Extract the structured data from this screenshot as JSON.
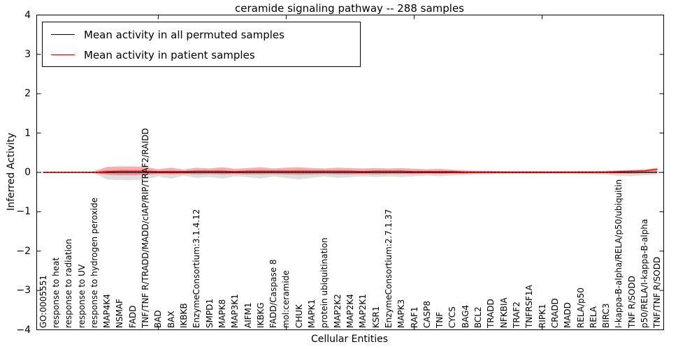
{
  "chart_data": {
    "type": "line",
    "title": "ceramide signaling pathway -- 288 samples",
    "xlabel": "Cellular Entities",
    "ylabel": "Inferred Activity",
    "ylim": [
      -4,
      4
    ],
    "yticks": [
      -4,
      -3,
      -2,
      -1,
      0,
      1,
      2,
      3,
      4
    ],
    "xticks_major": [
      10,
      20,
      30,
      40
    ],
    "grid": false,
    "legend_position": "upper left",
    "zero_line": {
      "style": "dotted",
      "color": "#000000"
    },
    "categories": [
      "GO:0005551",
      "response to heat",
      "response to radiation",
      "response to UV",
      "response to hydrogen peroxide",
      "MAP4K4",
      "NSMAF",
      "FADD",
      "TNF/TNF R/TRADD/MADD/cIAP/RIP/TRAF2/RAIDD",
      "BAD",
      "BAX",
      "IKBKB",
      "EnzymeConsortium:3.1.4.12",
      "SMPD1",
      "MAPK8",
      "MAP3K1",
      "AIFM1",
      "IKBKG",
      "FADD/Caspase 8",
      "mol:ceramide",
      "CHUK",
      "MAPK1",
      "protein ubiquitination",
      "MAP2K2",
      "MAP2K4",
      "MAP2K1",
      "KSR1",
      "EnzymeConsortium:2.7.1.37",
      "MAPK3",
      "RAF1",
      "CASP8",
      "TNF",
      "CYCS",
      "BAG4",
      "BCL2",
      "TRADD",
      "NFKBIA",
      "TRAF2",
      "TNFRSF1A",
      "RIPK1",
      "CRADD",
      "MADD",
      "RELA/p50",
      "RELA",
      "BIRC3",
      "I-kappa-B-alpha/RELA/p50/ubiquitin",
      "TNF R/SODD",
      "p50/RELA/I-kappa-B-alpha",
      "TNF/TNF R/SODD"
    ],
    "series": [
      {
        "name": "Mean activity in all permuted samples",
        "color": "#000000",
        "style": "solid",
        "values": [
          0,
          0,
          0,
          0,
          0,
          0,
          0,
          0,
          0,
          0,
          0,
          0,
          0,
          0,
          0,
          0,
          0,
          0,
          0,
          0,
          0,
          0,
          0,
          0,
          0,
          0,
          0,
          0,
          0,
          0,
          0,
          0,
          0,
          0,
          0,
          0,
          0,
          0,
          0,
          0,
          0,
          0,
          0,
          0,
          0,
          0,
          0,
          0,
          0
        ]
      },
      {
        "name": "Mean activity in patient samples",
        "color": "#ff0000",
        "style": "solid",
        "values": [
          0,
          0,
          0,
          0,
          0,
          0.02,
          0.03,
          0.03,
          0.03,
          0.02,
          0.02,
          0.02,
          0.03,
          0.03,
          0.03,
          0.02,
          0.03,
          0.03,
          0.03,
          0.03,
          0.03,
          0.03,
          0.03,
          0.03,
          0.03,
          0.02,
          0.03,
          0.03,
          0.03,
          0.02,
          0.02,
          0.02,
          0.02,
          0.01,
          0.01,
          0.01,
          0.01,
          0.01,
          0.01,
          0.01,
          0.01,
          0.01,
          0.01,
          0.01,
          0.01,
          0.02,
          0.03,
          0.04,
          0.08
        ]
      }
    ],
    "bands": [
      {
        "name": "permuted samples +/- std",
        "color": "#000000",
        "opacity": 0.13,
        "upper": [
          0.01,
          0.01,
          0.01,
          0.01,
          0.02,
          0.06,
          0.07,
          0.07,
          0.06,
          0.04,
          0.05,
          0.04,
          0.05,
          0.05,
          0.05,
          0.04,
          0.05,
          0.06,
          0.05,
          0.05,
          0.06,
          0.05,
          0.05,
          0.05,
          0.05,
          0.04,
          0.05,
          0.04,
          0.05,
          0.04,
          0.04,
          0.04,
          0.04,
          0.03,
          0.03,
          0.03,
          0.02,
          0.02,
          0.02,
          0.02,
          0.02,
          0.02,
          0.03,
          0.03,
          0.03,
          0.04,
          0.05,
          0.05,
          0.08
        ],
        "lower": [
          -0.01,
          -0.01,
          -0.01,
          -0.01,
          -0.02,
          -0.18,
          -0.2,
          -0.2,
          -0.18,
          -0.1,
          -0.16,
          -0.08,
          -0.14,
          -0.12,
          -0.16,
          -0.1,
          -0.12,
          -0.16,
          -0.1,
          -0.14,
          -0.18,
          -0.14,
          -0.1,
          -0.14,
          -0.12,
          -0.1,
          -0.12,
          -0.1,
          -0.12,
          -0.1,
          -0.08,
          -0.1,
          -0.08,
          -0.06,
          -0.05,
          -0.05,
          -0.04,
          -0.04,
          -0.04,
          -0.04,
          -0.04,
          -0.04,
          -0.05,
          -0.05,
          -0.06,
          -0.09,
          -0.1,
          -0.07,
          -0.06
        ]
      },
      {
        "name": "patient samples +/- std",
        "color": "#ff0000",
        "opacity": 0.33,
        "upper": [
          0.02,
          0.02,
          0.02,
          0.02,
          0.03,
          0.14,
          0.15,
          0.15,
          0.14,
          0.08,
          0.12,
          0.07,
          0.12,
          0.1,
          0.13,
          0.09,
          0.11,
          0.13,
          0.1,
          0.12,
          0.13,
          0.11,
          0.1,
          0.12,
          0.11,
          0.1,
          0.11,
          0.1,
          0.11,
          0.09,
          0.08,
          0.09,
          0.07,
          0.05,
          0.04,
          0.04,
          0.03,
          0.03,
          0.03,
          0.03,
          0.03,
          0.03,
          0.03,
          0.03,
          0.04,
          0.05,
          0.06,
          0.07,
          0.12
        ],
        "lower": [
          -0.01,
          -0.01,
          -0.01,
          -0.01,
          -0.02,
          -0.06,
          -0.07,
          -0.07,
          -0.06,
          -0.04,
          -0.05,
          -0.04,
          -0.05,
          -0.04,
          -0.05,
          -0.04,
          -0.05,
          -0.05,
          -0.04,
          -0.05,
          -0.06,
          -0.05,
          -0.04,
          -0.05,
          -0.05,
          -0.04,
          -0.05,
          -0.04,
          -0.04,
          -0.04,
          -0.03,
          -0.04,
          -0.03,
          -0.03,
          -0.02,
          -0.02,
          -0.02,
          -0.02,
          -0.02,
          -0.02,
          -0.02,
          -0.02,
          -0.02,
          -0.02,
          -0.02,
          -0.03,
          -0.03,
          -0.02,
          0.0
        ]
      }
    ]
  },
  "colors": {
    "axis": "#000000",
    "background": "#ffffff",
    "permuted_line": "#000000",
    "patient_line": "#ff0000"
  }
}
